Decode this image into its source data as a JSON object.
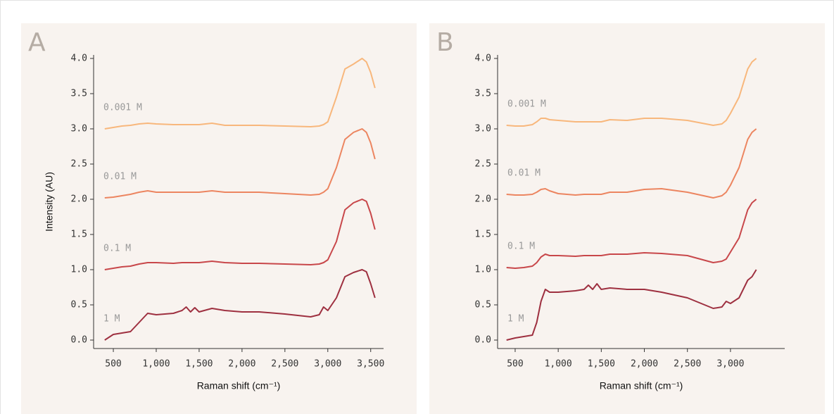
{
  "chart_data": [
    {
      "type": "line",
      "panel_label": "A",
      "xlabel": "Raman shift (cm⁻¹)",
      "ylabel": "Intensity (AU)",
      "x": [
        400,
        500,
        600,
        700,
        800,
        900,
        1000,
        1200,
        1300,
        1350,
        1400,
        1450,
        1500,
        1650,
        1800,
        2000,
        2200,
        2500,
        2800,
        2900,
        2950,
        3000,
        3100,
        3200,
        3300,
        3400,
        3450,
        3500,
        3550
      ],
      "series": [
        {
          "name": "0.001 M",
          "color": "#f8b77c",
          "values": [
            3.0,
            3.02,
            3.04,
            3.05,
            3.07,
            3.08,
            3.07,
            3.06,
            3.06,
            3.06,
            3.06,
            3.06,
            3.06,
            3.08,
            3.05,
            3.05,
            3.05,
            3.04,
            3.03,
            3.04,
            3.06,
            3.1,
            3.45,
            3.85,
            3.92,
            4.0,
            3.95,
            3.8,
            3.58
          ]
        },
        {
          "name": "0.01 M",
          "color": "#ec8560",
          "values": [
            2.02,
            2.03,
            2.05,
            2.07,
            2.1,
            2.12,
            2.1,
            2.1,
            2.1,
            2.1,
            2.1,
            2.1,
            2.1,
            2.12,
            2.1,
            2.1,
            2.1,
            2.08,
            2.06,
            2.07,
            2.1,
            2.15,
            2.45,
            2.85,
            2.95,
            3.0,
            2.95,
            2.8,
            2.57
          ]
        },
        {
          "name": "0.1 M",
          "color": "#c8474a",
          "values": [
            1.0,
            1.02,
            1.04,
            1.05,
            1.08,
            1.1,
            1.1,
            1.09,
            1.1,
            1.1,
            1.1,
            1.1,
            1.1,
            1.12,
            1.1,
            1.09,
            1.09,
            1.08,
            1.07,
            1.08,
            1.1,
            1.14,
            1.4,
            1.85,
            1.95,
            2.0,
            1.97,
            1.8,
            1.57
          ]
        },
        {
          "name": "1 M",
          "color": "#9e3040",
          "values": [
            0.0,
            0.08,
            0.1,
            0.12,
            0.25,
            0.38,
            0.36,
            0.38,
            0.42,
            0.47,
            0.4,
            0.46,
            0.4,
            0.45,
            0.42,
            0.4,
            0.4,
            0.37,
            0.33,
            0.36,
            0.47,
            0.42,
            0.6,
            0.9,
            0.96,
            1.0,
            0.97,
            0.8,
            0.6
          ]
        }
      ],
      "xlim": [
        270,
        3650
      ],
      "ylim": [
        -0.12,
        4.05
      ],
      "xticks": [
        500,
        {
          "value": 1000,
          "label": "1,000"
        },
        {
          "value": 1500,
          "label": "1,500"
        },
        {
          "value": 2000,
          "label": "2,000"
        },
        {
          "value": 2500,
          "label": "2,500"
        },
        {
          "value": 3000,
          "label": "3,000"
        },
        {
          "value": 3500,
          "label": "3,500"
        }
      ],
      "yticks": [
        {
          "value": 0,
          "label": "0.0"
        },
        0.5,
        {
          "value": 1,
          "label": "1.0"
        },
        1.5,
        {
          "value": 2,
          "label": "2.0"
        },
        2.5,
        {
          "value": 3,
          "label": "3.0"
        },
        3.5,
        {
          "value": 4,
          "label": "4.0"
        }
      ]
    },
    {
      "type": "line",
      "panel_label": "B",
      "xlabel": "Raman shift (cm⁻¹)",
      "x": [
        400,
        500,
        600,
        700,
        750,
        800,
        850,
        900,
        1000,
        1200,
        1300,
        1350,
        1400,
        1450,
        1500,
        1600,
        1800,
        2000,
        2200,
        2500,
        2800,
        2900,
        2950,
        3000,
        3100,
        3200,
        3250,
        3300
      ],
      "series": [
        {
          "name": "0.001 M",
          "color": "#f8b77c",
          "values": [
            3.05,
            3.04,
            3.04,
            3.06,
            3.1,
            3.15,
            3.15,
            3.13,
            3.12,
            3.1,
            3.1,
            3.1,
            3.1,
            3.1,
            3.1,
            3.13,
            3.12,
            3.15,
            3.15,
            3.12,
            3.05,
            3.07,
            3.12,
            3.22,
            3.45,
            3.85,
            3.95,
            4.0
          ]
        },
        {
          "name": "0.01 M",
          "color": "#ec8560",
          "values": [
            2.07,
            2.06,
            2.06,
            2.07,
            2.1,
            2.14,
            2.15,
            2.12,
            2.08,
            2.06,
            2.07,
            2.07,
            2.07,
            2.07,
            2.07,
            2.1,
            2.1,
            2.14,
            2.15,
            2.1,
            2.02,
            2.05,
            2.1,
            2.2,
            2.45,
            2.85,
            2.95,
            3.0
          ]
        },
        {
          "name": "0.1 M",
          "color": "#c8474a",
          "values": [
            1.03,
            1.02,
            1.03,
            1.05,
            1.1,
            1.18,
            1.22,
            1.2,
            1.2,
            1.19,
            1.2,
            1.2,
            1.2,
            1.2,
            1.2,
            1.22,
            1.22,
            1.24,
            1.23,
            1.2,
            1.1,
            1.12,
            1.15,
            1.25,
            1.45,
            1.85,
            1.95,
            2.0
          ]
        },
        {
          "name": "1 M",
          "color": "#9e3040",
          "values": [
            0.0,
            0.03,
            0.05,
            0.07,
            0.25,
            0.55,
            0.72,
            0.68,
            0.68,
            0.7,
            0.72,
            0.78,
            0.72,
            0.8,
            0.72,
            0.74,
            0.72,
            0.72,
            0.68,
            0.6,
            0.45,
            0.47,
            0.55,
            0.52,
            0.6,
            0.85,
            0.9,
            1.0
          ]
        }
      ],
      "xlim": [
        296,
        3630
      ],
      "ylim": [
        -0.12,
        4.05
      ],
      "xticks": [
        500,
        {
          "value": 1000,
          "label": "1,000"
        },
        {
          "value": 1500,
          "label": "1,500"
        },
        {
          "value": 2000,
          "label": "2,000"
        },
        {
          "value": 2500,
          "label": "2,500"
        },
        {
          "value": 3000,
          "label": "3,000"
        }
      ],
      "yticks": [
        {
          "value": 0,
          "label": "0.0"
        },
        0.5,
        {
          "value": 1,
          "label": "1.0"
        },
        1.5,
        {
          "value": 2,
          "label": "2.0"
        },
        2.5,
        {
          "value": 3,
          "label": "3.0"
        },
        3.5,
        {
          "value": 4,
          "label": "4.0"
        }
      ]
    }
  ]
}
